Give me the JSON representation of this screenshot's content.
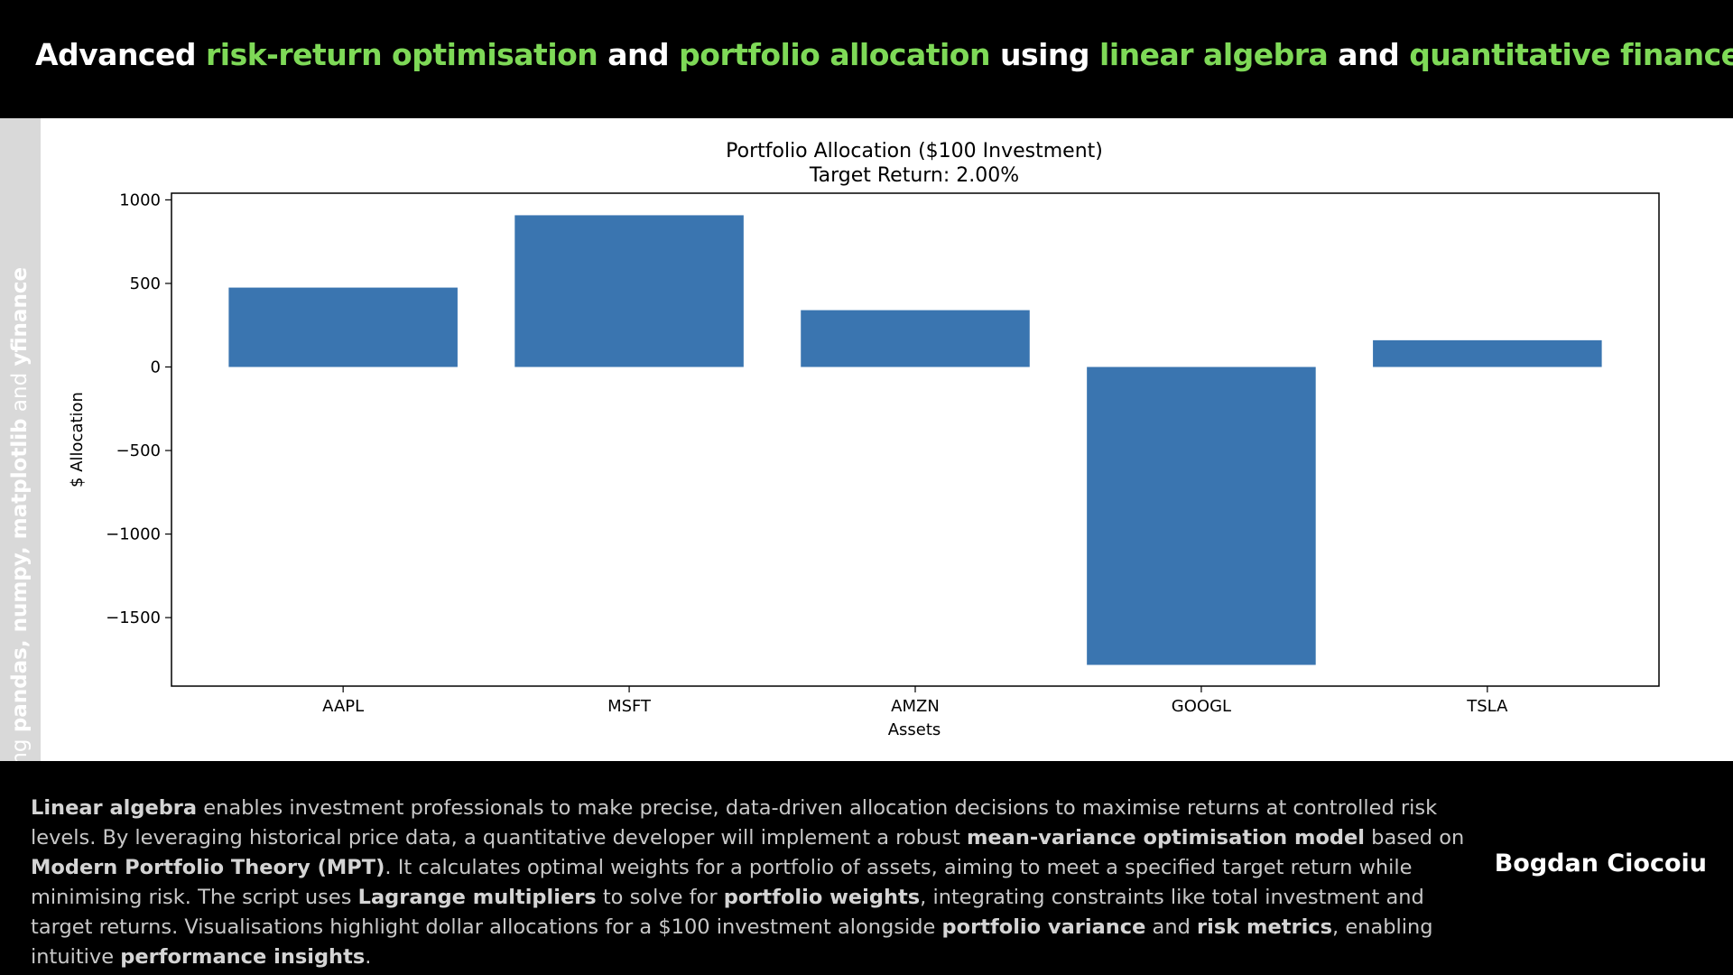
{
  "header": {
    "title_parts": [
      {
        "text": "Advanced ",
        "highlight": false
      },
      {
        "text": "risk-return optimisation",
        "highlight": true
      },
      {
        "text": " and ",
        "highlight": false
      },
      {
        "text": "portfolio allocation",
        "highlight": true
      },
      {
        "text": " using ",
        "highlight": false
      },
      {
        "text": "linear algebra",
        "highlight": true
      },
      {
        "text": " and ",
        "highlight": false
      },
      {
        "text": "quantitative finance",
        "highlight": true
      }
    ],
    "highlight_color": "#7ed957"
  },
  "sidebar": {
    "parts": [
      {
        "text": "Built using ",
        "bold": false
      },
      {
        "text": "pandas, numpy, matplotlib",
        "bold": true
      },
      {
        "text": " and ",
        "bold": false
      },
      {
        "text": "yfinance",
        "bold": true
      }
    ]
  },
  "chart_data": {
    "type": "bar",
    "title_line1": "Portfolio Allocation ($100 Investment)",
    "title_line2": "Target Return: 2.00%",
    "xlabel": "Assets",
    "ylabel": "$ Allocation",
    "categories": [
      "AAPL",
      "MSFT",
      "AMZN",
      "GOOGL",
      "TSLA"
    ],
    "values": [
      475,
      908,
      340,
      -1783,
      160
    ],
    "ylim": [
      -1910,
      1040
    ],
    "yticks": [
      1000,
      500,
      0,
      -500,
      -1000,
      -1500
    ],
    "ytick_labels": [
      "1000",
      "500",
      "0",
      "−500",
      "−1000",
      "−1500"
    ],
    "bar_color": "#3a75b0",
    "grid": false
  },
  "footer": {
    "description_parts": [
      {
        "text": "Linear algebra",
        "bold": true
      },
      {
        "text": " enables investment professionals to make precise, data-driven allocation decisions to maximise returns at controlled risk levels. By leveraging historical price data, a quantitative developer will implement a robust ",
        "bold": false
      },
      {
        "text": "mean-variance optimisation model",
        "bold": true
      },
      {
        "text": " based on ",
        "bold": false
      },
      {
        "text": "Modern Portfolio Theory (MPT)",
        "bold": true
      },
      {
        "text": ". It calculates optimal weights for a portfolio of assets, aiming to meet a specified target return while minimising risk. The script uses ",
        "bold": false
      },
      {
        "text": "Lagrange multipliers",
        "bold": true
      },
      {
        "text": " to solve for ",
        "bold": false
      },
      {
        "text": "portfolio weights",
        "bold": true
      },
      {
        "text": ", integrating constraints like total investment and target returns. Visualisations highlight dollar allocations for a $100 investment alongside ",
        "bold": false
      },
      {
        "text": "portfolio variance",
        "bold": true
      },
      {
        "text": " and ",
        "bold": false
      },
      {
        "text": "risk metrics",
        "bold": true
      },
      {
        "text": ", enabling intuitive ",
        "bold": false
      },
      {
        "text": "performance insights",
        "bold": true
      },
      {
        "text": ".",
        "bold": false
      }
    ],
    "author": "Bogdan Ciocoiu"
  }
}
